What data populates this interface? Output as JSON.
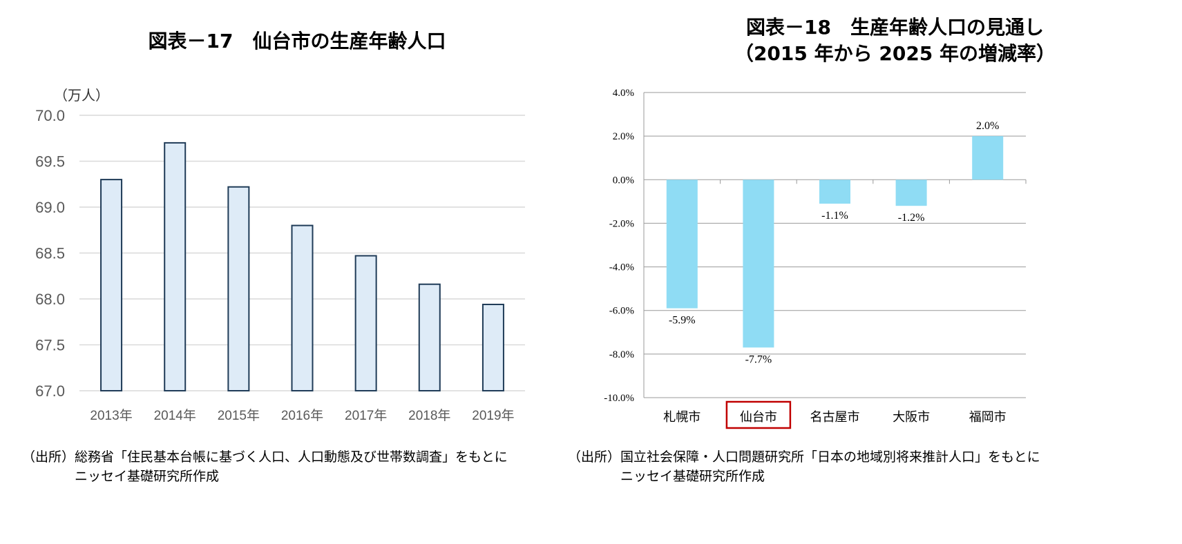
{
  "chart_data": [
    {
      "type": "bar",
      "title": "図表－17　仙台市の生産年齢人口",
      "unit_label": "（万人）",
      "categories": [
        "2013年",
        "2014年",
        "2015年",
        "2016年",
        "2017年",
        "2018年",
        "2019年"
      ],
      "values": [
        69.3,
        69.7,
        69.22,
        68.8,
        68.47,
        68.16,
        67.94
      ],
      "ylim": [
        67.0,
        70.0
      ],
      "yticks": [
        "67.0",
        "67.5",
        "68.0",
        "68.5",
        "69.0",
        "69.5",
        "70.0"
      ],
      "grid": true,
      "colors": {
        "bar_fill": "#deebf7",
        "bar_stroke": "#1f3b57",
        "grid": "#d9d9d9"
      },
      "source_line1": "（出所）総務省「住民基本台帳に基づく人口、人口動態及び世帯数調査」をもとに",
      "source_line2": "ニッセイ基礎研究所作成"
    },
    {
      "type": "bar",
      "title_line1": "図表－18　生産年齢人口の見通し",
      "title_line2": "（2015 年から 2025 年の増減率）",
      "categories": [
        "札幌市",
        "仙台市",
        "名古屋市",
        "大阪市",
        "福岡市"
      ],
      "values": [
        -5.9,
        -7.7,
        -1.1,
        -1.2,
        2.0
      ],
      "data_labels": [
        "-5.9%",
        "-7.7%",
        "-1.1%",
        "-1.2%",
        "2.0%"
      ],
      "ylim": [
        -10.0,
        4.0
      ],
      "yticks": [
        "-10.0%",
        "-8.0%",
        "-6.0%",
        "-4.0%",
        "-2.0%",
        "0.0%",
        "2.0%",
        "4.0%"
      ],
      "highlighted_category": "仙台市",
      "grid": true,
      "colors": {
        "bar_fill": "#8fdcf4",
        "highlight_box": "#c00000",
        "grid": "#999999"
      },
      "source_line1": "（出所）国立社会保障・人口問題研究所「日本の地域別将来推計人口」をもとに",
      "source_line2": "ニッセイ基礎研究所作成"
    }
  ]
}
